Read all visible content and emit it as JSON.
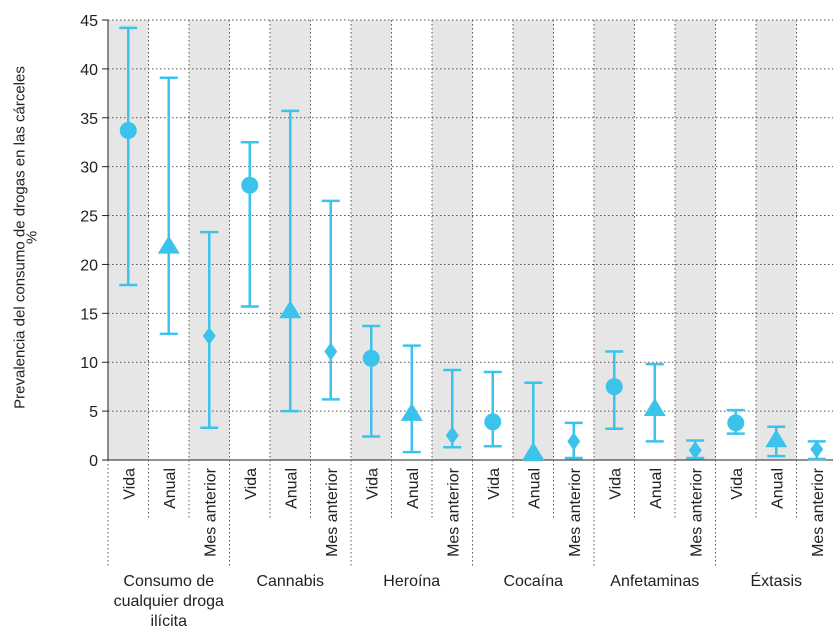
{
  "chart_data": {
    "type": "scatter",
    "title": "",
    "ylabel": "Prevalencia del consumo de drogas en las cárceles",
    "yunit": "%",
    "ylim": [
      0,
      45
    ],
    "yticks": [
      0,
      5,
      10,
      15,
      20,
      25,
      30,
      35,
      40,
      45
    ],
    "grid": true,
    "marker_color": "#3cc3ec",
    "band_color": "#e6e6e6",
    "series": [
      {
        "name": "Vida",
        "marker": "circle"
      },
      {
        "name": "Anual",
        "marker": "triangle"
      },
      {
        "name": "Mes anterior",
        "marker": "diamond"
      }
    ],
    "groups": [
      {
        "label": "Consumo de cualquier droga ilícita",
        "points": [
          {
            "category": "Vida",
            "value": 33.7,
            "low": 17.9,
            "high": 44.2
          },
          {
            "category": "Anual",
            "value": 21.8,
            "low": 12.9,
            "high": 39.1
          },
          {
            "category": "Mes anterior",
            "value": 12.7,
            "low": 3.3,
            "high": 23.3
          }
        ]
      },
      {
        "label": "Cannabis",
        "points": [
          {
            "category": "Vida",
            "value": 28.1,
            "low": 15.7,
            "high": 32.5
          },
          {
            "category": "Anual",
            "value": 15.2,
            "low": 5.0,
            "high": 35.7
          },
          {
            "category": "Mes anterior",
            "value": 11.1,
            "low": 6.2,
            "high": 26.5
          }
        ]
      },
      {
        "label": "Heroína",
        "points": [
          {
            "category": "Vida",
            "value": 10.4,
            "low": 2.4,
            "high": 13.7
          },
          {
            "category": "Anual",
            "value": 4.7,
            "low": 0.8,
            "high": 11.7
          },
          {
            "category": "Mes anterior",
            "value": 2.5,
            "low": 1.3,
            "high": 9.2
          }
        ]
      },
      {
        "label": "Cocaína",
        "points": [
          {
            "category": "Vida",
            "value": 3.9,
            "low": 1.4,
            "high": 9.0
          },
          {
            "category": "Anual",
            "value": 0.7,
            "low": 0.0,
            "high": 7.9
          },
          {
            "category": "Mes anterior",
            "value": 1.9,
            "low": 0.2,
            "high": 3.8
          }
        ]
      },
      {
        "label": "Anfetaminas",
        "points": [
          {
            "category": "Vida",
            "value": 7.5,
            "low": 3.2,
            "high": 11.1
          },
          {
            "category": "Anual",
            "value": 5.2,
            "low": 1.9,
            "high": 9.8
          },
          {
            "category": "Mes anterior",
            "value": 1.0,
            "low": 0.2,
            "high": 2.0
          }
        ]
      },
      {
        "label": "Éxtasis",
        "points": [
          {
            "category": "Vida",
            "value": 3.8,
            "low": 2.7,
            "high": 5.1
          },
          {
            "category": "Anual",
            "value": 2.0,
            "low": 0.4,
            "high": 3.4
          },
          {
            "category": "Mes anterior",
            "value": 1.1,
            "low": 0.1,
            "high": 1.9
          }
        ]
      }
    ]
  }
}
